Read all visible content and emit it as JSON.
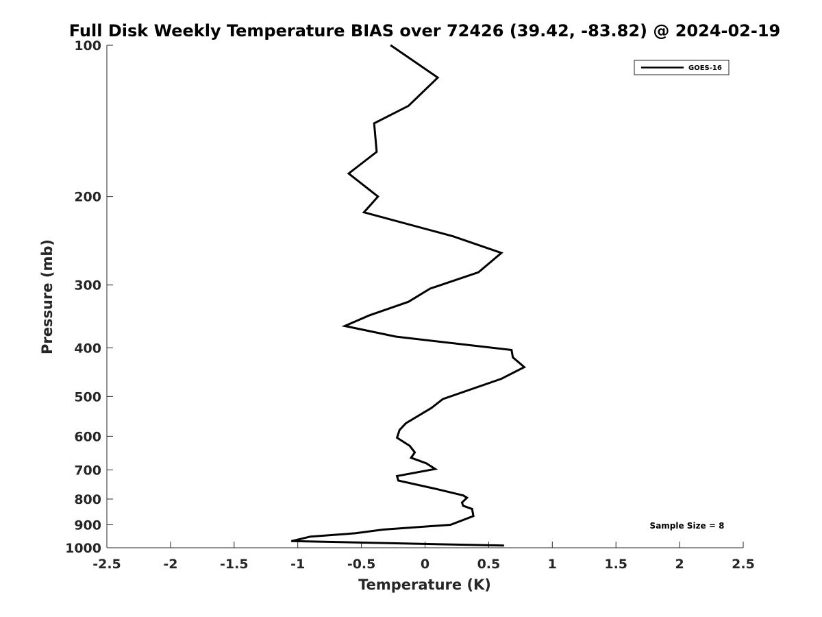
{
  "chart_data": {
    "type": "line",
    "title": "Full Disk Weekly Temperature BIAS over 72426 (39.42, -83.82) @ 2024-02-19",
    "xlabel": "Temperature (K)",
    "ylabel": "Pressure (mb)",
    "xlim": [
      -2.5,
      2.5
    ],
    "ylim": [
      1000,
      100
    ],
    "yscale": "log",
    "y_reversed": true,
    "x_ticks": [
      "-2.5",
      "-2",
      "-1.5",
      "-1",
      "-0.5",
      "0",
      "0.5",
      "1",
      "1.5",
      "2",
      "2.5"
    ],
    "y_ticks": [
      "100",
      "200",
      "300",
      "400",
      "500",
      "600",
      "700",
      "800",
      "900",
      "1000"
    ],
    "grid": false,
    "legend_position": "top-right",
    "series": [
      {
        "name": "GOES-16",
        "color": "#000000",
        "points": [
          [
            -0.27,
            100
          ],
          [
            0.1,
            116
          ],
          [
            -0.13,
            132
          ],
          [
            -0.4,
            143
          ],
          [
            -0.38,
            163
          ],
          [
            -0.6,
            180
          ],
          [
            -0.37,
            200
          ],
          [
            -0.48,
            215
          ],
          [
            0.22,
            240
          ],
          [
            0.6,
            259
          ],
          [
            0.42,
            283
          ],
          [
            0.04,
            305
          ],
          [
            -0.13,
            324
          ],
          [
            -0.44,
            345
          ],
          [
            -0.63,
            362
          ],
          [
            -0.23,
            380
          ],
          [
            0.68,
            404
          ],
          [
            0.69,
            418
          ],
          [
            0.78,
            437
          ],
          [
            0.6,
            461
          ],
          [
            0.14,
            506
          ],
          [
            0.05,
            527
          ],
          [
            -0.15,
            565
          ],
          [
            -0.2,
            583
          ],
          [
            -0.22,
            604
          ],
          [
            -0.12,
            627
          ],
          [
            -0.08,
            646
          ],
          [
            -0.11,
            662
          ],
          [
            0.01,
            679
          ],
          [
            0.08,
            697
          ],
          [
            -0.22,
            720
          ],
          [
            -0.21,
            735
          ],
          [
            0.09,
            764
          ],
          [
            0.3,
            787
          ],
          [
            0.33,
            795
          ],
          [
            0.29,
            813
          ],
          [
            0.3,
            825
          ],
          [
            0.37,
            837
          ],
          [
            0.38,
            865
          ],
          [
            0.2,
            900
          ],
          [
            -0.33,
            920
          ],
          [
            -0.55,
            936
          ],
          [
            -0.9,
            950
          ],
          [
            -1.05,
            970
          ],
          [
            0.62,
            990
          ]
        ]
      }
    ],
    "annotations": [
      "Sample Size = 8"
    ]
  }
}
